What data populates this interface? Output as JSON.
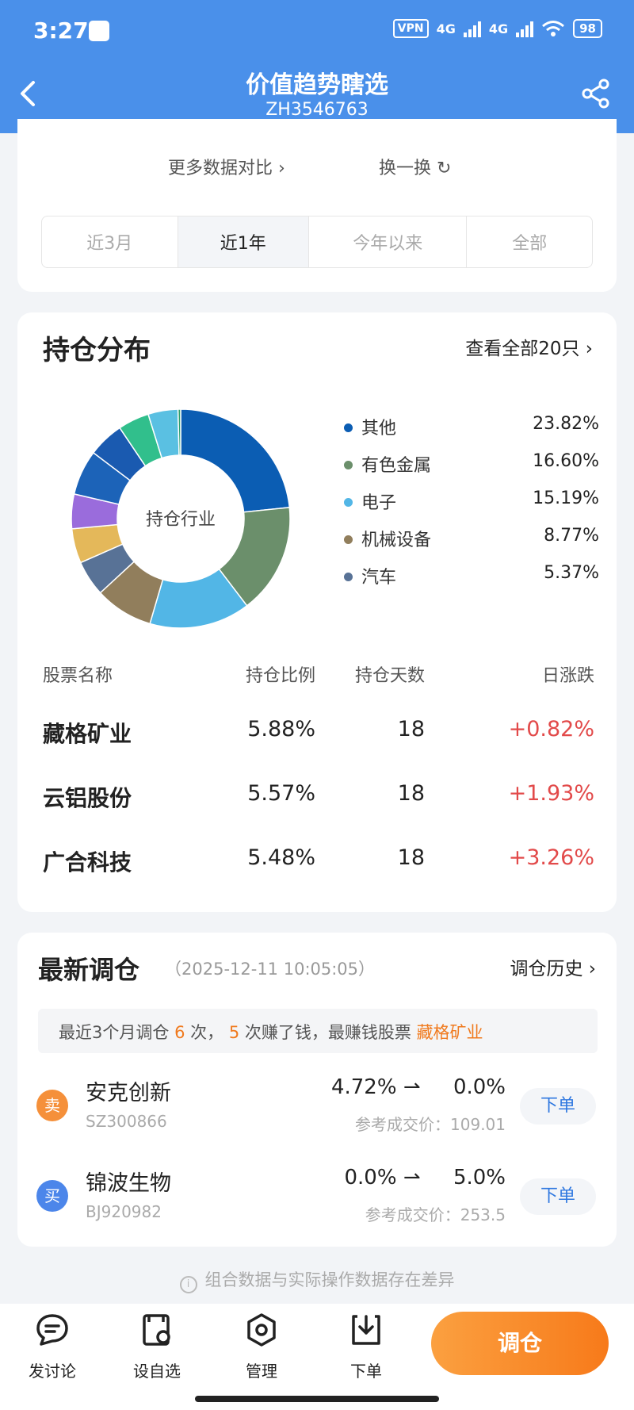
{
  "status_bar": {
    "time": "3:27",
    "vpn": "VPN",
    "net1": "4G",
    "net2": "4G",
    "battery": "98"
  },
  "header": {
    "title": "价值趋势瞎选",
    "code": "ZH3546763"
  },
  "compare": {
    "more_label": "更多数据对比",
    "swap_label": "换一换"
  },
  "tabs": [
    "近3月",
    "近1年",
    "今年以来",
    "全部"
  ],
  "tabs_active": "近1年",
  "holdings": {
    "title": "持仓分布",
    "view_all": "查看全部20只",
    "donut_center": "持仓行业",
    "industries": [
      {
        "name": "其他",
        "value": "23.82%",
        "color": "#0b5db3"
      },
      {
        "name": "有色金属",
        "value": "16.60%",
        "color": "#6b8f6b"
      },
      {
        "name": "电子",
        "value": "15.19%",
        "color": "#52b6e6"
      },
      {
        "name": "机械设备",
        "value": "8.77%",
        "color": "#917e5c"
      },
      {
        "name": "汽车",
        "value": "5.37%",
        "color": "#587296"
      }
    ],
    "columns": [
      "股票名称",
      "持仓比例",
      "持仓天数",
      "日涨跌"
    ],
    "rows": [
      {
        "name": "藏格矿业",
        "ratio": "5.88%",
        "days": "18",
        "change": "+0.82%"
      },
      {
        "name": "云铝股份",
        "ratio": "5.57%",
        "days": "18",
        "change": "+1.93%"
      },
      {
        "name": "广合科技",
        "ratio": "5.48%",
        "days": "18",
        "change": "+3.26%"
      }
    ]
  },
  "chart_data": {
    "type": "pie",
    "title": "持仓行业",
    "slices": [
      {
        "label": "其他",
        "value": 23.82,
        "color": "#0b5db3"
      },
      {
        "label": "有色金属",
        "value": 16.6,
        "color": "#6b8f6b"
      },
      {
        "label": "电子",
        "value": 15.19,
        "color": "#52b6e6"
      },
      {
        "label": "机械设备",
        "value": 8.77,
        "color": "#917e5c"
      },
      {
        "label": "汽车",
        "value": 5.37,
        "color": "#587296"
      },
      {
        "label": "",
        "value": 5.2,
        "color": "#e4b85a"
      },
      {
        "label": "",
        "value": 5.2,
        "color": "#9a6cdc"
      },
      {
        "label": "",
        "value": 6.8,
        "color": "#1c63b8"
      },
      {
        "label": "",
        "value": 5.4,
        "color": "#1a5ab0"
      },
      {
        "label": "",
        "value": 4.7,
        "color": "#31bf8c"
      },
      {
        "label": "",
        "value": 4.5,
        "color": "#5ac0e2"
      },
      {
        "label": "",
        "value": 0.4,
        "color": "#2da070"
      }
    ]
  },
  "adjust": {
    "title": "最新调仓",
    "time": "（2025-12-11 10:05:05）",
    "history": "调仓历史",
    "summary": {
      "prefix": "最近3个月调仓",
      "count": "6",
      "mid1": "次，",
      "profit": "5",
      "mid2": "次赚了钱，最赚钱股票",
      "best": "藏格矿业"
    },
    "trades": [
      {
        "type": "卖",
        "name": "安克创新",
        "code": "SZ300866",
        "from": "4.72%",
        "to": "0.0%",
        "ref": "参考成交价：109.01",
        "btn": "下单"
      },
      {
        "type": "买",
        "name": "锦波生物",
        "code": "BJ920982",
        "from": "0.0%",
        "to": "5.0%",
        "ref": "参考成交价：253.5",
        "btn": "下单"
      }
    ]
  },
  "disclaimer": "组合数据与实际操作数据存在差异",
  "bottom": {
    "discuss": "发讨论",
    "watch": "设自选",
    "manage": "管理",
    "order": "下单",
    "adjust": "调仓"
  }
}
